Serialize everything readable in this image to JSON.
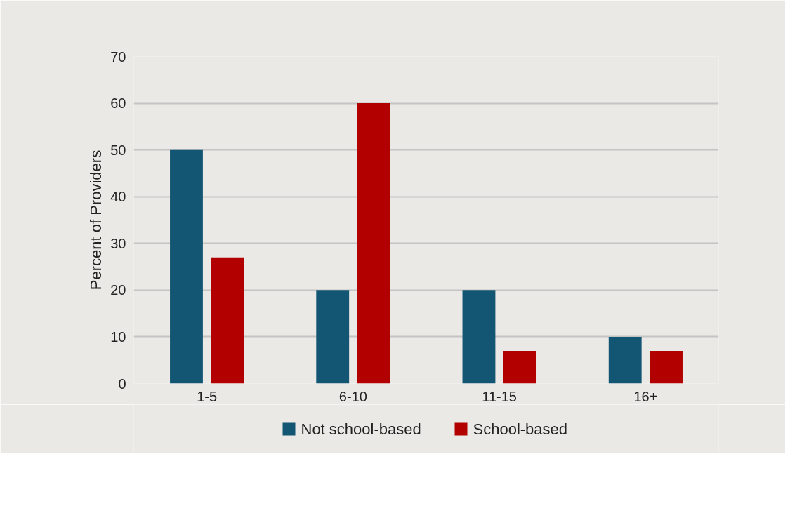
{
  "chart_data": {
    "type": "bar",
    "ylabel": "Percent of Providers",
    "categories": [
      "1-5",
      "6-10",
      "11-15",
      "16+"
    ],
    "series": [
      {
        "name": "Not school-based",
        "color": "#135673",
        "values": [
          50,
          20,
          20,
          10
        ]
      },
      {
        "name": "School-based",
        "color": "#b20000",
        "values": [
          27,
          60,
          7,
          7
        ]
      }
    ],
    "ylim": [
      0,
      70
    ],
    "yticks": [
      0,
      10,
      20,
      30,
      40,
      50,
      60,
      70
    ],
    "grid": "y",
    "legend": "bottom"
  }
}
